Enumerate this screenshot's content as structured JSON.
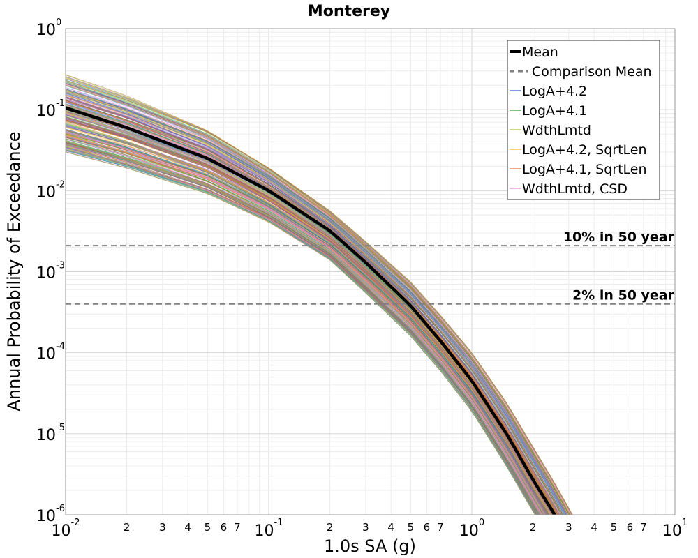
{
  "chart_data": {
    "type": "line",
    "title": "Monterey",
    "xlabel": "1.0s SA (g)",
    "ylabel": "Annual Probability of Exceedance",
    "xscale": "log",
    "yscale": "log",
    "xlim": [
      0.01,
      10
    ],
    "ylim": [
      1e-06,
      1
    ],
    "grid": true,
    "legend_position": "top-right",
    "x_major_ticks": [
      {
        "base": "10",
        "exp": "-2"
      },
      {
        "base": "10",
        "exp": "-1"
      },
      {
        "base": "10",
        "exp": "0"
      },
      {
        "base": "10",
        "exp": "1"
      }
    ],
    "y_major_ticks": [
      {
        "base": "10",
        "exp": "0"
      },
      {
        "base": "10",
        "exp": "-1"
      },
      {
        "base": "10",
        "exp": "-2"
      },
      {
        "base": "10",
        "exp": "-3"
      },
      {
        "base": "10",
        "exp": "-4"
      },
      {
        "base": "10",
        "exp": "-5"
      },
      {
        "base": "10",
        "exp": "-6"
      }
    ],
    "x_minor_tick_labels": [
      "2",
      "3",
      "4",
      "5",
      "6",
      "7"
    ],
    "mean_curve": {
      "name": "Mean",
      "color": "#000000",
      "x": [
        0.01,
        0.02,
        0.05,
        0.1,
        0.2,
        0.3,
        0.5,
        0.7,
        1.0,
        1.5,
        2.0,
        2.5,
        3.0
      ],
      "y": [
        0.105,
        0.06,
        0.025,
        0.01,
        0.0032,
        0.0013,
        0.00038,
        0.00014,
        4.5e-05,
        9.5e-06,
        2.7e-06,
        1.1e-06,
        5e-07
      ]
    },
    "branch_envelope": {
      "x": [
        0.01,
        0.02,
        0.05,
        0.1,
        0.2,
        0.3,
        0.5,
        0.7,
        1.0,
        1.5,
        2.0,
        2.5,
        3.0
      ],
      "y_upper": [
        0.27,
        0.15,
        0.058,
        0.02,
        0.0058,
        0.0024,
        0.00075,
        0.00029,
        0.0001,
        2.3e-05,
        6.8e-06,
        2.7e-06,
        1.2e-06
      ],
      "y_lower": [
        0.03,
        0.019,
        0.0092,
        0.0041,
        0.0014,
        0.00055,
        0.00016,
        6e-05,
        1.9e-05,
        3.8e-06,
        1.1e-06,
        4.5e-07,
        2e-07
      ]
    },
    "series": [
      {
        "name": "Mean",
        "color": "#000000",
        "style": "solid-thick"
      },
      {
        "name": "Comparison Mean",
        "color": "#808080",
        "style": "dashed"
      },
      {
        "name": "LogA+4.2",
        "color": "#3a5fcd",
        "style": "thin"
      },
      {
        "name": "LogA+4.1",
        "color": "#3c9a3c",
        "style": "thin"
      },
      {
        "name": "WdthLmtd",
        "color": "#a8c43a",
        "style": "thin"
      },
      {
        "name": "LogA+4.2, SqrtLen",
        "color": "#f2b630",
        "style": "thin"
      },
      {
        "name": "LogA+4.1, SqrtLen",
        "color": "#e2733c",
        "style": "thin"
      },
      {
        "name": "WdthLmtd, CSD",
        "color": "#e890d8",
        "style": "thin"
      }
    ],
    "reference_lines": [
      {
        "label": "10% in 50 year",
        "y": 0.0021
      },
      {
        "label": "2% in 50 year",
        "y": 0.0004
      }
    ]
  }
}
